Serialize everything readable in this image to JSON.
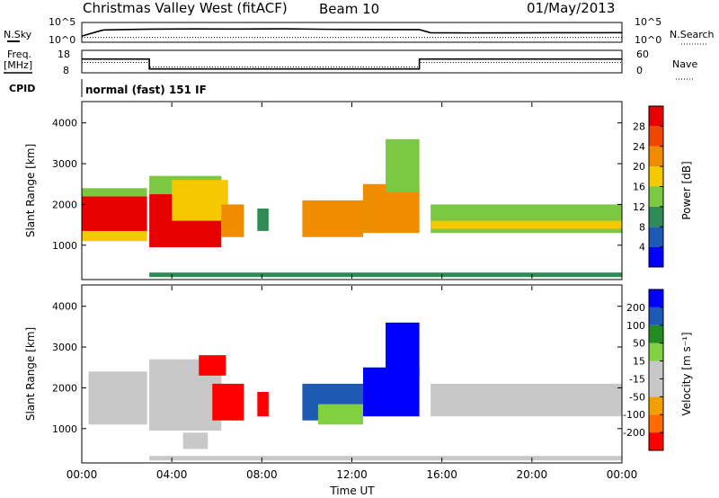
{
  "header": {
    "station": "Christmas Valley West (fitACF)",
    "beam": "Beam 10",
    "date": "01/May/2013"
  },
  "labels": {
    "nsky": "N.Sky",
    "nsearch": "N.Search",
    "freq_line1": "Freq.",
    "freq_line2": "[MHz]",
    "nave": "Nave",
    "cpid": "CPID",
    "cpid_value": "normal (fast) 151 IF",
    "noise_tick_hi": "10^5",
    "noise_tick_lo": "10^0"
  },
  "colors": {
    "power": [
      "#0000ff",
      "#1e5ab4",
      "#2e8b57",
      "#7cc842",
      "#f5c800",
      "#f08c00",
      "#f04600",
      "#e60000"
    ],
    "velocity": [
      "#ff0000",
      "#ff6a00",
      "#f0a000",
      "#c8c8c8",
      "#c8c8c8",
      "#80d040",
      "#228b22",
      "#1e5ab4",
      "#0000ff"
    ]
  },
  "chart_data": [
    {
      "type": "line",
      "name": "noise",
      "ylim": [
        1,
        100000
      ],
      "yscale": "log",
      "yticks": [
        "10^5",
        "10^0"
      ],
      "series": [
        {
          "name": "N.Sky",
          "x": [
            0,
            0.9,
            1,
            3,
            5,
            7,
            9,
            11,
            13,
            15,
            15.5,
            17,
            19,
            21,
            23,
            24
          ],
          "values": [
            30,
            1200,
            1500,
            2500,
            2800,
            2600,
            3000,
            2200,
            2000,
            1800,
            250,
            220,
            230,
            240,
            250,
            260
          ]
        },
        {
          "name": "N.Search",
          "x": [
            0,
            24
          ],
          "values": [
            12,
            12
          ]
        }
      ]
    },
    {
      "type": "line",
      "name": "frequency",
      "ylim": [
        8,
        18
      ],
      "yticks": [
        18,
        8
      ],
      "nave_yticks": [
        60,
        0
      ],
      "series": [
        {
          "name": "Freq.",
          "x": [
            0,
            3,
            3,
            15,
            15,
            24
          ],
          "values": [
            14.5,
            14.5,
            9.5,
            9.5,
            14.5,
            14.5
          ]
        },
        {
          "name": "Nave",
          "x": [
            0,
            3,
            3,
            15,
            15,
            24
          ],
          "values": [
            12.8,
            12.8,
            10.5,
            10.5,
            12.8,
            12.8
          ]
        }
      ]
    },
    {
      "type": "heatmap",
      "name": "power",
      "xlabel": "",
      "ylabel": "Slant Range [km]",
      "xlim": [
        0,
        24
      ],
      "ylim": [
        180,
        4500
      ],
      "yticks": [
        1000,
        2000,
        3000,
        4000
      ],
      "colorbar_label": "Power [dB]",
      "colorbar_ticks": [
        4,
        8,
        12,
        16,
        20,
        24,
        28
      ],
      "zlim": [
        0,
        32
      ],
      "regions": [
        {
          "t": [
            0,
            2.9
          ],
          "r": [
            1300,
            2200
          ],
          "z": 30
        },
        {
          "t": [
            0,
            2.9
          ],
          "r": [
            1100,
            1350
          ],
          "z": 17
        },
        {
          "t": [
            0,
            2.9
          ],
          "r": [
            2200,
            2400
          ],
          "z": 14
        },
        {
          "t": [
            3,
            6.2
          ],
          "r": [
            950,
            2350
          ],
          "z": 29
        },
        {
          "t": [
            3,
            6.2
          ],
          "r": [
            2250,
            2700
          ],
          "z": 15
        },
        {
          "t": [
            4,
            6.5
          ],
          "r": [
            1600,
            2600
          ],
          "z": 18
        },
        {
          "t": [
            6.2,
            7.2
          ],
          "r": [
            1200,
            2000
          ],
          "z": 22
        },
        {
          "t": [
            7.8,
            8.3
          ],
          "r": [
            1350,
            1900
          ],
          "z": 10
        },
        {
          "t": [
            9.8,
            12.5
          ],
          "r": [
            1200,
            2100
          ],
          "z": 21
        },
        {
          "t": [
            12.5,
            15
          ],
          "r": [
            1300,
            2500
          ],
          "z": 20
        },
        {
          "t": [
            13.5,
            15
          ],
          "r": [
            2300,
            3600
          ],
          "z": 14
        },
        {
          "t": [
            15.5,
            24
          ],
          "r": [
            1300,
            2000
          ],
          "z": 12
        },
        {
          "t": [
            15.5,
            24
          ],
          "r": [
            1400,
            1600
          ],
          "z": 19
        },
        {
          "t": [
            3,
            24
          ],
          "r": [
            220,
            330
          ],
          "z": 8
        }
      ]
    },
    {
      "type": "heatmap",
      "name": "velocity",
      "xlabel": "Time UT",
      "ylabel": "Slant Range [km]",
      "xlim": [
        0,
        24
      ],
      "ylim": [
        180,
        4500
      ],
      "xticks": [
        "00:00",
        "04:00",
        "08:00",
        "12:00",
        "16:00",
        "20:00",
        "00:00"
      ],
      "yticks": [
        1000,
        2000,
        3000,
        4000
      ],
      "colorbar_label": "Velocity [m s⁻¹]",
      "colorbar_ticks": [
        200,
        100,
        50,
        15,
        -15,
        -50,
        -100,
        -200
      ],
      "zlim": [
        -250,
        250
      ],
      "regions": [
        {
          "t": [
            0.3,
            2.9
          ],
          "r": [
            1100,
            2400
          ],
          "z": 0
        },
        {
          "t": [
            3,
            6.2
          ],
          "r": [
            950,
            2350
          ],
          "z": 0
        },
        {
          "t": [
            3,
            6.2
          ],
          "r": [
            2000,
            2700
          ],
          "z": -70
        },
        {
          "t": [
            5.8,
            7.2
          ],
          "r": [
            1200,
            2100
          ],
          "z": -230
        },
        {
          "t": [
            5.2,
            6.4
          ],
          "r": [
            2300,
            2800
          ],
          "z": -230
        },
        {
          "t": [
            4.5,
            5.6
          ],
          "r": [
            500,
            900
          ],
          "z": -70
        },
        {
          "t": [
            7.8,
            8.3
          ],
          "r": [
            1300,
            1900
          ],
          "z": -200
        },
        {
          "t": [
            9.8,
            12.5
          ],
          "r": [
            1200,
            2100
          ],
          "z": 160
        },
        {
          "t": [
            10.5,
            12.5
          ],
          "r": [
            1100,
            1600
          ],
          "z": 60
        },
        {
          "t": [
            12.5,
            15
          ],
          "r": [
            1300,
            2500
          ],
          "z": 210
        },
        {
          "t": [
            13.5,
            15
          ],
          "r": [
            2300,
            3600
          ],
          "z": 220
        },
        {
          "t": [
            15.5,
            24
          ],
          "r": [
            1300,
            2100
          ],
          "z": 0
        },
        {
          "t": [
            3,
            24
          ],
          "r": [
            220,
            330
          ],
          "z": -60
        }
      ]
    }
  ]
}
